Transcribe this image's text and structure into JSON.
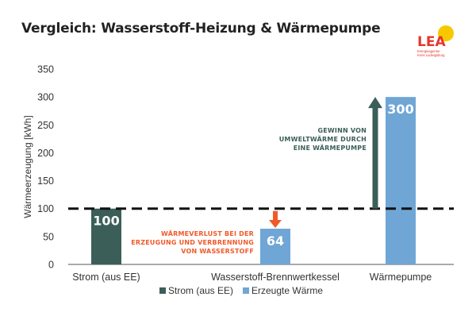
{
  "title": "Vergleich: Wasserstoff-Heizung & Wärmepumpe",
  "logo": {
    "text": "LEA",
    "subtitle_line1": "Energieagentur",
    "subtitle_line2": "Kreis Ludwigsburg"
  },
  "colors": {
    "strom": "#3b5f58",
    "waerme": "#6fa6d6",
    "gain": "#3b5f58",
    "loss": "#f05a2a",
    "sun": "#f7c800",
    "logo_red": "#e4362b"
  },
  "chart_data": {
    "type": "bar",
    "categories": [
      "Strom (aus EE)",
      "Wasserstoff-Brennwertkessel",
      "Wärmepumpe"
    ],
    "values": [
      100,
      64,
      300
    ],
    "series_of_bar": [
      "Strom (aus EE)",
      "Erzeugte Wärme",
      "Erzeugte Wärme"
    ],
    "data_labels": [
      "100",
      "64",
      "300"
    ],
    "ylabel": "Wärmeerzeugung [kWh]",
    "ylim": [
      0,
      350
    ],
    "yticks": [
      0,
      50,
      100,
      150,
      200,
      250,
      300,
      350
    ],
    "reference_line": 100,
    "legend": [
      {
        "name": "Strom (aus EE)",
        "color": "#3b5f58"
      },
      {
        "name": "Erzeugte Wärme",
        "color": "#6fa6d6"
      }
    ],
    "legend_position": "bottom",
    "annotations": {
      "gain": [
        "GEWINN VON",
        "UMWELTWÄRME DURCH",
        "EINE WÄRMEPUMPE"
      ],
      "loss": [
        "WÄRMEVERLUST BEI DER",
        "ERZEUGUNG UND VERBRENNUNG",
        "VON WASSERSTOFF"
      ]
    }
  }
}
